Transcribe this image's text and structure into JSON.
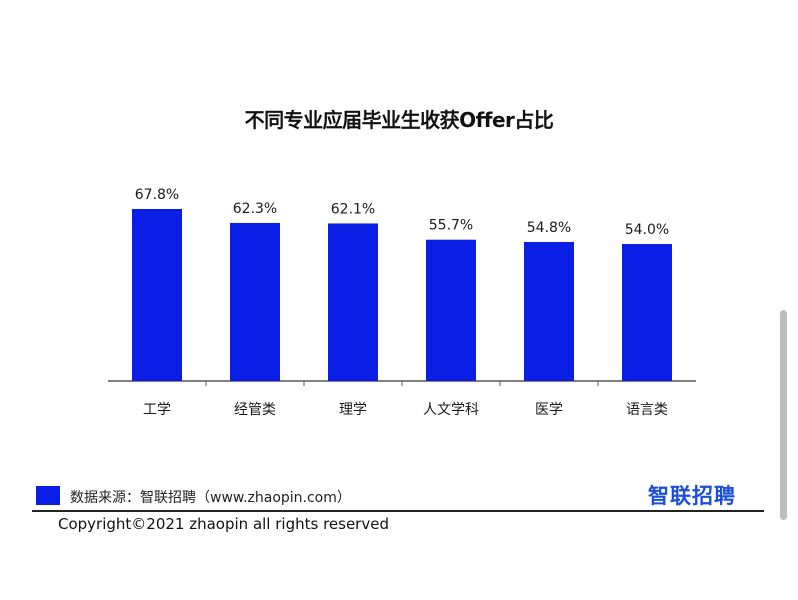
{
  "chart_data": {
    "type": "bar",
    "title": "不同专业应届毕业生收获Offer占比",
    "categories": [
      "工学",
      "经管类",
      "理学",
      "人文学科",
      "医学",
      "语言类"
    ],
    "values": [
      67.8,
      62.3,
      62.1,
      55.7,
      54.8,
      54.0
    ],
    "data_labels": [
      "67.8%",
      "62.3%",
      "62.1%",
      "55.7%",
      "54.8%",
      "54.0%"
    ],
    "ylim": [
      0,
      67.8
    ],
    "grid": false,
    "bar_color": "#0a1ee6"
  },
  "footer": {
    "source": "数据来源：智联招聘（www.zhaopin.com）",
    "brand": "智联招聘",
    "copyright": "Copyright©2021 zhaopin all rights reserved",
    "brand_color": "#1a4fd8"
  }
}
